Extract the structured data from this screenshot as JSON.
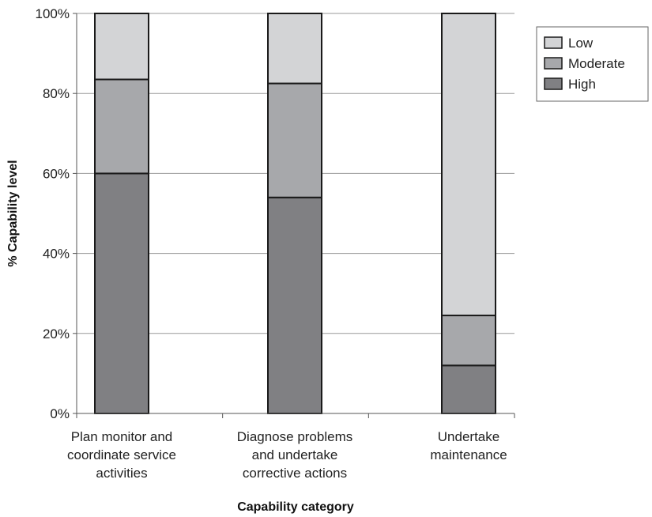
{
  "chart_data": {
    "type": "bar",
    "stacked": true,
    "categories": [
      [
        "Plan monitor and",
        "coordinate service",
        "activities"
      ],
      [
        "Diagnose problems",
        "and undertake",
        "corrective actions"
      ],
      [
        "Undertake",
        "maintenance"
      ]
    ],
    "series": [
      {
        "name": "High",
        "color": "#808083",
        "values": [
          60,
          54,
          12
        ]
      },
      {
        "name": "Moderate",
        "color": "#a7a8ab",
        "values": [
          23.5,
          28.5,
          12.5
        ]
      },
      {
        "name": "Low",
        "color": "#d3d4d6",
        "values": [
          16.5,
          17.5,
          75.5
        ]
      }
    ],
    "legend_order": [
      "Low",
      "Moderate",
      "High"
    ],
    "legend_position": "top-right",
    "xlabel": "Capability category",
    "ylabel": "% Capability level",
    "ylim": [
      0,
      100
    ],
    "yticks": [
      0,
      20,
      40,
      60,
      80,
      100
    ],
    "ytick_labels": [
      "0%",
      "20%",
      "40%",
      "60%",
      "80%",
      "100%"
    ],
    "grid": true,
    "colors": {
      "grid": "#999999",
      "bar_edge": "#1a1a1a",
      "axis": "#555555"
    }
  }
}
